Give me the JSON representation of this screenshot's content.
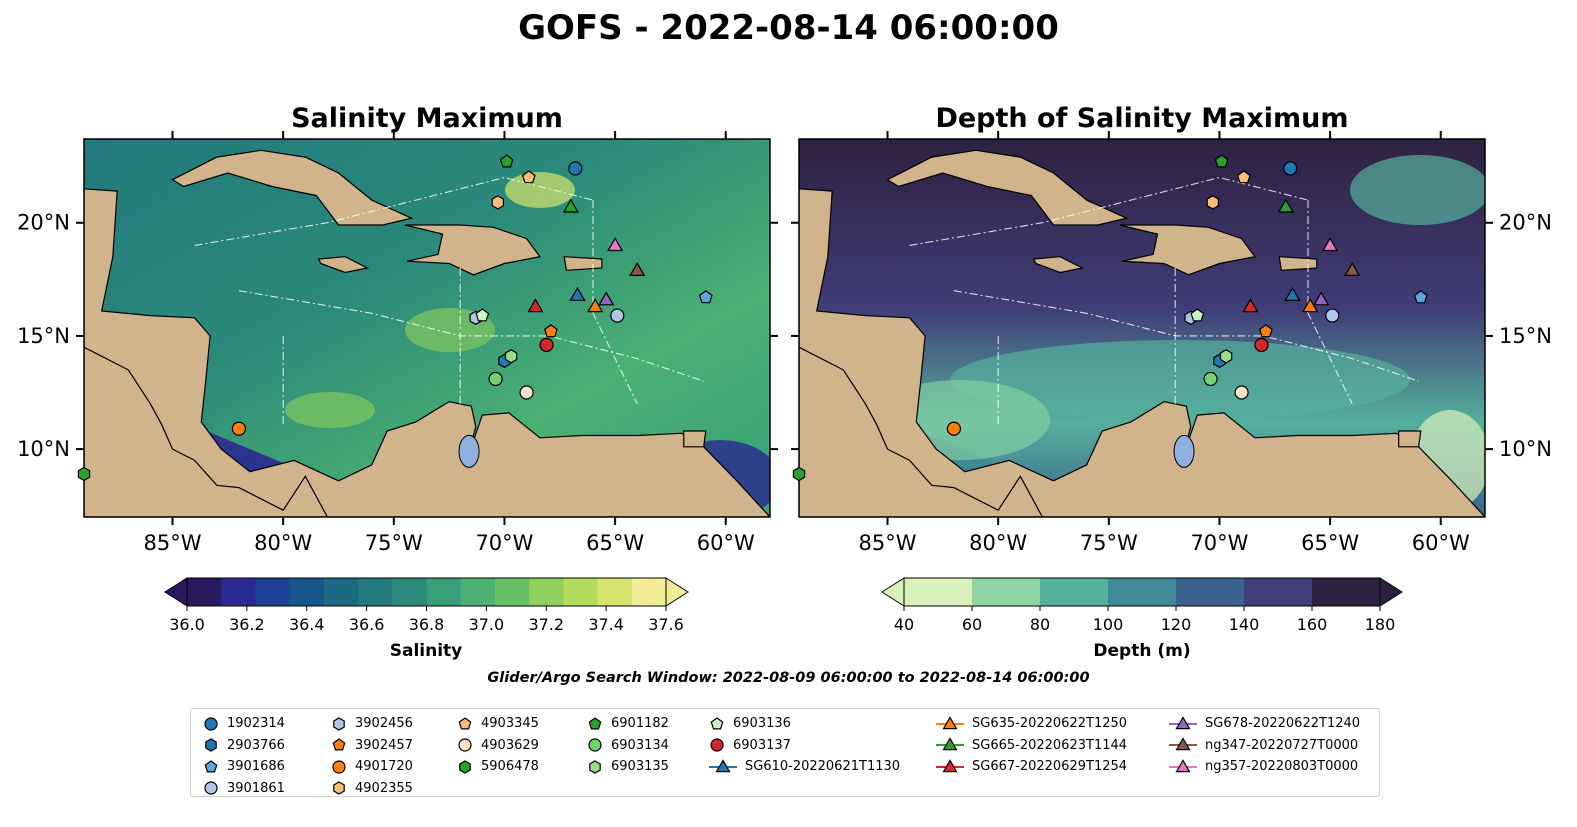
{
  "title": "GOFS - 2022-08-14 06:00:00",
  "panels": [
    {
      "title": "Salinity Maximum"
    },
    {
      "title": "Depth of Salinity Maximum"
    }
  ],
  "axes": {
    "lon_ticks": [
      "85°W",
      "80°W",
      "75°W",
      "70°W",
      "65°W",
      "60°W"
    ],
    "lat_ticks": [
      "20°N",
      "15°N",
      "10°N"
    ]
  },
  "colorbars": {
    "salinity": {
      "label": "Salinity",
      "ticks": [
        "36.0",
        "36.2",
        "36.4",
        "36.6",
        "36.8",
        "37.0",
        "37.2",
        "37.4",
        "37.6"
      ],
      "colors": [
        "#2a1b5e",
        "#2b2892",
        "#1f4197",
        "#16568b",
        "#1c6982",
        "#23797d",
        "#2b8a7a",
        "#37a079",
        "#4bb072",
        "#68c165",
        "#8fcf5b",
        "#b3db5c",
        "#d6e56e",
        "#f2eb96"
      ]
    },
    "depth": {
      "label": "Depth (m)",
      "ticks": [
        "40",
        "60",
        "80",
        "100",
        "120",
        "140",
        "160",
        "180"
      ],
      "colors": [
        "#d9f0bb",
        "#8dd6a3",
        "#55b09c",
        "#3f8896",
        "#3b628e",
        "#403d78",
        "#2e2140"
      ]
    }
  },
  "search_window": "Glider/Argo Search Window: 2022-08-09 06:00:00 to 2022-08-14 06:00:00",
  "legend": {
    "columns": [
      [
        {
          "label": "1902314",
          "marker": "circle",
          "color": "#1f77b4"
        },
        {
          "label": "2903766",
          "marker": "hexagon",
          "color": "#1f77b4"
        },
        {
          "label": "3901686",
          "marker": "pentagon",
          "color": "#5aa7e0"
        },
        {
          "label": "3901861",
          "marker": "circle",
          "color": "#aec7e8"
        }
      ],
      [
        {
          "label": "3902456",
          "marker": "hexagon",
          "color": "#aec7e8"
        },
        {
          "label": "3902457",
          "marker": "pentagon",
          "color": "#ff7f0e"
        },
        {
          "label": "4901720",
          "marker": "circle",
          "color": "#ff7f0e"
        },
        {
          "label": "4902355",
          "marker": "hexagon",
          "color": "#ffbb78"
        }
      ],
      [
        {
          "label": "4903345",
          "marker": "pentagon",
          "color": "#ffbb78"
        },
        {
          "label": "4903629",
          "marker": "circle",
          "color": "#ffe3c8"
        },
        {
          "label": "5906478",
          "marker": "hexagon",
          "color": "#2ca02c"
        }
      ],
      [
        {
          "label": "6901182",
          "marker": "pentagon",
          "color": "#2ca02c"
        },
        {
          "label": "6903134",
          "marker": "circle",
          "color": "#6fd36f"
        },
        {
          "label": "6903135",
          "marker": "hexagon",
          "color": "#98df8a"
        }
      ],
      [
        {
          "label": "6903136",
          "marker": "pentagon",
          "color": "#c8f5c0"
        },
        {
          "label": "6903137",
          "marker": "circle",
          "color": "#d62728"
        },
        {
          "label": "SG610-20220621T1130",
          "marker": "triangle",
          "color": "#1f77b4"
        }
      ],
      [
        {
          "label": "SG635-20220622T1250",
          "marker": "triangle",
          "color": "#ff7f0e"
        },
        {
          "label": "SG665-20220623T1144",
          "marker": "triangle",
          "color": "#2ca02c"
        },
        {
          "label": "SG667-20220629T1254",
          "marker": "triangle",
          "color": "#d62728"
        }
      ],
      [
        {
          "label": "SG678-20220622T1240",
          "marker": "triangle",
          "color": "#9467bd"
        },
        {
          "label": "ng347-20220727T0000",
          "marker": "triangle",
          "color": "#8c564b"
        },
        {
          "label": "ng357-20220803T0000",
          "marker": "triangle",
          "color": "#e377c2"
        }
      ]
    ]
  },
  "observations": [
    {
      "id": "1902314",
      "marker": "circle",
      "color": "#1f77b4",
      "lon": -66.8,
      "lat": 22.4
    },
    {
      "id": "2903766",
      "marker": "hexagon",
      "color": "#1f77b4",
      "lon": -70.0,
      "lat": 13.9
    },
    {
      "id": "3901686",
      "marker": "pentagon",
      "color": "#5aa7e0",
      "lon": -60.9,
      "lat": 16.7
    },
    {
      "id": "3901861",
      "marker": "circle",
      "color": "#aec7e8",
      "lon": -64.9,
      "lat": 15.9
    },
    {
      "id": "3902456",
      "marker": "hexagon",
      "color": "#aec7e8",
      "lon": -71.3,
      "lat": 15.8
    },
    {
      "id": "3902457",
      "marker": "pentagon",
      "color": "#ff7f0e",
      "lon": -67.9,
      "lat": 15.2
    },
    {
      "id": "4901720",
      "marker": "circle",
      "color": "#ff7f0e",
      "lon": -82.0,
      "lat": 10.9
    },
    {
      "id": "4902355",
      "marker": "hexagon",
      "color": "#ffbb78",
      "lon": -70.3,
      "lat": 20.9
    },
    {
      "id": "4903345",
      "marker": "pentagon",
      "color": "#ffbb78",
      "lon": -68.9,
      "lat": 22.0
    },
    {
      "id": "4903629",
      "marker": "circle",
      "color": "#ffe3c8",
      "lon": -69.0,
      "lat": 12.5
    },
    {
      "id": "5906478",
      "marker": "hexagon",
      "color": "#2ca02c",
      "lon": -89.0,
      "lat": 8.9
    },
    {
      "id": "6901182",
      "marker": "pentagon",
      "color": "#2ca02c",
      "lon": -69.9,
      "lat": 22.7
    },
    {
      "id": "6903134",
      "marker": "circle",
      "color": "#6fd36f",
      "lon": -70.4,
      "lat": 13.1
    },
    {
      "id": "6903135",
      "marker": "hexagon",
      "color": "#98df8a",
      "lon": -69.7,
      "lat": 14.1
    },
    {
      "id": "6903136",
      "marker": "pentagon",
      "color": "#c8f5c0",
      "lon": -71.0,
      "lat": 15.9
    },
    {
      "id": "6903137",
      "marker": "circle",
      "color": "#d62728",
      "lon": -68.1,
      "lat": 14.6
    },
    {
      "id": "SG610-20220621T1130",
      "marker": "triangle",
      "color": "#1f77b4",
      "lon": -66.7,
      "lat": 16.8
    },
    {
      "id": "SG635-20220622T1250",
      "marker": "triangle",
      "color": "#ff7f0e",
      "lon": -65.9,
      "lat": 16.3
    },
    {
      "id": "SG665-20220623T1144",
      "marker": "triangle",
      "color": "#2ca02c",
      "lon": -67.0,
      "lat": 20.7
    },
    {
      "id": "SG667-20220629T1254",
      "marker": "triangle",
      "color": "#d62728",
      "lon": -68.6,
      "lat": 16.3
    },
    {
      "id": "SG678-20220622T1240",
      "marker": "triangle",
      "color": "#9467bd",
      "lon": -65.4,
      "lat": 16.6
    },
    {
      "id": "ng347-20220727T0000",
      "marker": "triangle",
      "color": "#8c564b",
      "lon": -64.0,
      "lat": 17.9
    },
    {
      "id": "ng357-20220803T0000",
      "marker": "triangle",
      "color": "#e377c2",
      "lon": -65.0,
      "lat": 19.0
    }
  ],
  "map_extent": {
    "lon": [
      -89.0,
      -58.0
    ],
    "lat": [
      7.0,
      23.7
    ]
  },
  "colors": {
    "land": "#d2b48c",
    "lake": "#8fb1e0",
    "salinity_ocean": "#3a9a7c",
    "depth_ocean": "#3a5a8a"
  }
}
